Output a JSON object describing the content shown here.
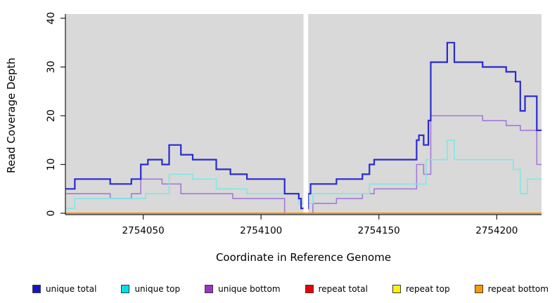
{
  "chart_data": {
    "type": "line",
    "subtype": "step-coverage-plot",
    "xlabel": "Coordinate in Reference Genome",
    "ylabel": "Read Coverage Depth",
    "x_range": [
      2754017,
      2754219
    ],
    "y_range": [
      0,
      40
    ],
    "x_ticks": [
      2754050,
      2754100,
      2754150,
      2754200
    ],
    "y_ticks": [
      0,
      10,
      20,
      30,
      40
    ],
    "panel_bg": "#d9d9d9",
    "axis_color": "#1a1a1a",
    "gap": {
      "from": 2754118,
      "to": 2754120
    },
    "legend_position": "bottom",
    "grid": false,
    "series": [
      {
        "name": "unique total",
        "color": "#2a2ad0",
        "legend_color": "#1414cc",
        "width": 2.2,
        "steps": [
          [
            2754017,
            5
          ],
          [
            2754021,
            7
          ],
          [
            2754036,
            6
          ],
          [
            2754045,
            7
          ],
          [
            2754049,
            10
          ],
          [
            2754052,
            11
          ],
          [
            2754058,
            10
          ],
          [
            2754061,
            14
          ],
          [
            2754066,
            12
          ],
          [
            2754071,
            11
          ],
          [
            2754081,
            9
          ],
          [
            2754087,
            8
          ],
          [
            2754094,
            7
          ],
          [
            2754110,
            4
          ],
          [
            2754116,
            3
          ],
          [
            2754117,
            1
          ],
          [
            2754120,
            4
          ],
          [
            2754121,
            6
          ],
          [
            2754132,
            7
          ],
          [
            2754143,
            8
          ],
          [
            2754146,
            10
          ],
          [
            2754148,
            11
          ],
          [
            2754166,
            15
          ],
          [
            2754167,
            16
          ],
          [
            2754169,
            14
          ],
          [
            2754171,
            19
          ],
          [
            2754172,
            31
          ],
          [
            2754179,
            35
          ],
          [
            2754182,
            31
          ],
          [
            2754194,
            30
          ],
          [
            2754204,
            29
          ],
          [
            2754208,
            27
          ],
          [
            2754210,
            21
          ],
          [
            2754212,
            24
          ],
          [
            2754217,
            17
          ]
        ]
      },
      {
        "name": "unique top",
        "color": "#7de8e8",
        "legend_color": "#00e0e8",
        "width": 1.6,
        "steps": [
          [
            2754017,
            1
          ],
          [
            2754021,
            3
          ],
          [
            2754051,
            4
          ],
          [
            2754061,
            8
          ],
          [
            2754071,
            7
          ],
          [
            2754081,
            5
          ],
          [
            2754094,
            4
          ],
          [
            2754116,
            2
          ],
          [
            2754122,
            4
          ],
          [
            2754146,
            6
          ],
          [
            2754170,
            11
          ],
          [
            2754179,
            15
          ],
          [
            2754182,
            11
          ],
          [
            2754207,
            9
          ],
          [
            2754210,
            4
          ],
          [
            2754213,
            7
          ]
        ]
      },
      {
        "name": "unique bottom",
        "color": "#a678d8",
        "legend_color": "#9933cc",
        "width": 1.6,
        "steps": [
          [
            2754017,
            4
          ],
          [
            2754036,
            3
          ],
          [
            2754045,
            4
          ],
          [
            2754049,
            7
          ],
          [
            2754058,
            6
          ],
          [
            2754066,
            4
          ],
          [
            2754088,
            3
          ],
          [
            2754110,
            0
          ],
          [
            2754122,
            2
          ],
          [
            2754132,
            3
          ],
          [
            2754143,
            4
          ],
          [
            2754148,
            5
          ],
          [
            2754166,
            10
          ],
          [
            2754169,
            8
          ],
          [
            2754172,
            20
          ],
          [
            2754194,
            19
          ],
          [
            2754204,
            18
          ],
          [
            2754210,
            17
          ],
          [
            2754217,
            10
          ]
        ]
      },
      {
        "name": "repeat total",
        "color": "#dd1111",
        "legend_color": "#e60000",
        "width": 1.6,
        "steps": [
          [
            2754017,
            0
          ]
        ]
      },
      {
        "name": "repeat top",
        "color": "#fff200",
        "legend_color": "#fff200",
        "width": 1.6,
        "steps": [
          [
            2754017,
            0
          ]
        ]
      },
      {
        "name": "repeat bottom",
        "color": "#ff9100",
        "legend_color": "#ff9900",
        "width": 2,
        "steps": [
          [
            2754017,
            0
          ]
        ]
      }
    ]
  }
}
